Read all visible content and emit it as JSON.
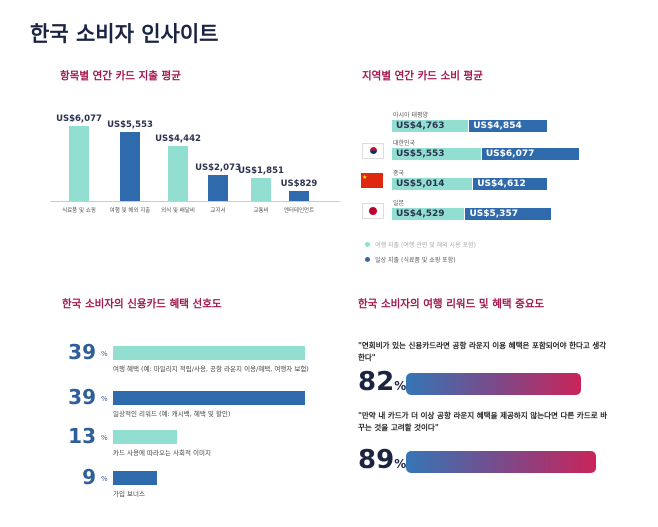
{
  "title": "한국 소비자 인사이트",
  "colors": {
    "teal": "#92dfd2",
    "blue": "#2f6aad",
    "accent": "#a3184f",
    "navy": "#1b2442"
  },
  "chart_data": [
    {
      "type": "bar",
      "title": "항목별 연간 카드 지출 평균",
      "categories": [
        "식료품 및 쇼핑",
        "여행 및 해외 지출",
        "외식 및 배달비",
        "교지서",
        "교통비",
        "엔터테인먼트"
      ],
      "values": [
        6077,
        5553,
        4442,
        2073,
        1851,
        829
      ],
      "labels": [
        "US$6,077",
        "US$5,553",
        "US$4,442",
        "US$2,073",
        "US$1,851",
        "US$829"
      ],
      "bar_colors": [
        "teal",
        "blue",
        "teal",
        "blue",
        "teal",
        "blue"
      ]
    },
    {
      "type": "bar",
      "orientation": "horizontal",
      "stacked": true,
      "title": "지역별 연간 카드 소비 평균",
      "categories": [
        "아시아 태평양",
        "대한민국",
        "중국",
        "일본"
      ],
      "flags": [
        "none",
        "korea-flag",
        "china-flag",
        "japan-flag"
      ],
      "series": [
        {
          "name": "여행 지출 (여행 관련 및 해외 사용 포함)",
          "values": [
            4763,
            5553,
            5014,
            4529
          ],
          "labels": [
            "US$4,763",
            "US$5,553",
            "US$5,014",
            "US$4,529"
          ]
        },
        {
          "name": "일상 지출 (식료품 및 쇼핑 포함)",
          "values": [
            4854,
            6077,
            4612,
            5357
          ],
          "labels": [
            "US$4,854",
            "US$6,077",
            "US$4,612",
            "US$5,357"
          ]
        }
      ],
      "legend": "bottom"
    },
    {
      "type": "bar",
      "orientation": "horizontal",
      "title": "한국 소비자의 신용카드 혜택 선호도",
      "categories": [
        "여행 혜택 (예: 마일리지 적립/사용, 공항 라운지 이용/혜택, 여행자 보험)",
        "일상적인 리워드 (예: 캐시백, 혜택 및 할인)",
        "카드 사용에 따라오는 사회적 이미지",
        "가입 보너스"
      ],
      "values": [
        39,
        39,
        13,
        9
      ],
      "unit": "%",
      "bar_colors": [
        "teal",
        "blue",
        "teal",
        "blue"
      ]
    },
    {
      "type": "bar",
      "orientation": "horizontal",
      "title": "한국 소비자의 여행 리워드 및 혜택 중요도",
      "categories": [
        "\"연회비가 있는 신용카드라면 공항 라운지 이용 혜택은 포함되어야 한다고 생각한다\"",
        "\"만약 내 카드가 더 이상 공항 라운지 혜택을 제공하지 않는다면 다른 카드로 바꾸는 것을 고려할 것이다\""
      ],
      "values": [
        82,
        89
      ],
      "unit": "%"
    }
  ]
}
